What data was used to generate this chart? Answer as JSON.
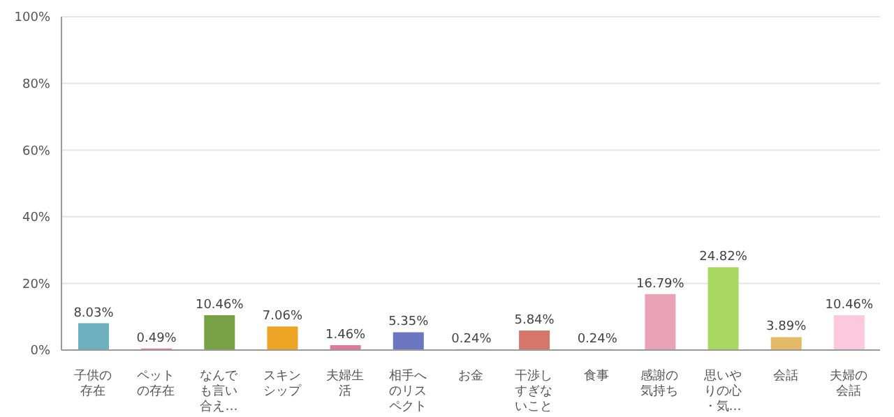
{
  "chart_data": {
    "type": "bar",
    "categories": [
      "子供の存在",
      "ペットの存在",
      "なんでも言い合え…",
      "スキンシップ",
      "夫婦生活",
      "相手へのリスペクト",
      "お金",
      "干渉しすぎないこと",
      "食事",
      "感謝の気持ち",
      "思いやりの心・気…",
      "会話",
      "夫婦の会話"
    ],
    "values": [
      8.03,
      0.49,
      10.46,
      7.06,
      1.46,
      5.35,
      0.24,
      5.84,
      0.24,
      16.79,
      24.82,
      3.89,
      10.46
    ],
    "colors": [
      "#6fb0c0",
      "#e07a84",
      "#78a044",
      "#eca424",
      "#e07898",
      "#6c76c0",
      "#a0a0a0",
      "#d4766a",
      "#a0a0a0",
      "#e8a2b6",
      "#a8d862",
      "#e4ba66",
      "#fcc8dc"
    ],
    "value_labels": [
      "8.03%",
      "0.49%",
      "10.46%",
      "7.06%",
      "1.46%",
      "5.35%",
      "0.24%",
      "5.84%",
      "0.24%",
      "16.79%",
      "24.82%",
      "3.89%",
      "10.46%"
    ],
    "ylim": [
      0,
      100
    ],
    "yticks": [
      {
        "value": 0,
        "label": "0%"
      },
      {
        "value": 20,
        "label": "20%"
      },
      {
        "value": 40,
        "label": "40%"
      },
      {
        "value": 60,
        "label": "60%"
      },
      {
        "value": 80,
        "label": "80%"
      },
      {
        "value": 100,
        "label": "100%"
      }
    ],
    "grid": "y"
  }
}
